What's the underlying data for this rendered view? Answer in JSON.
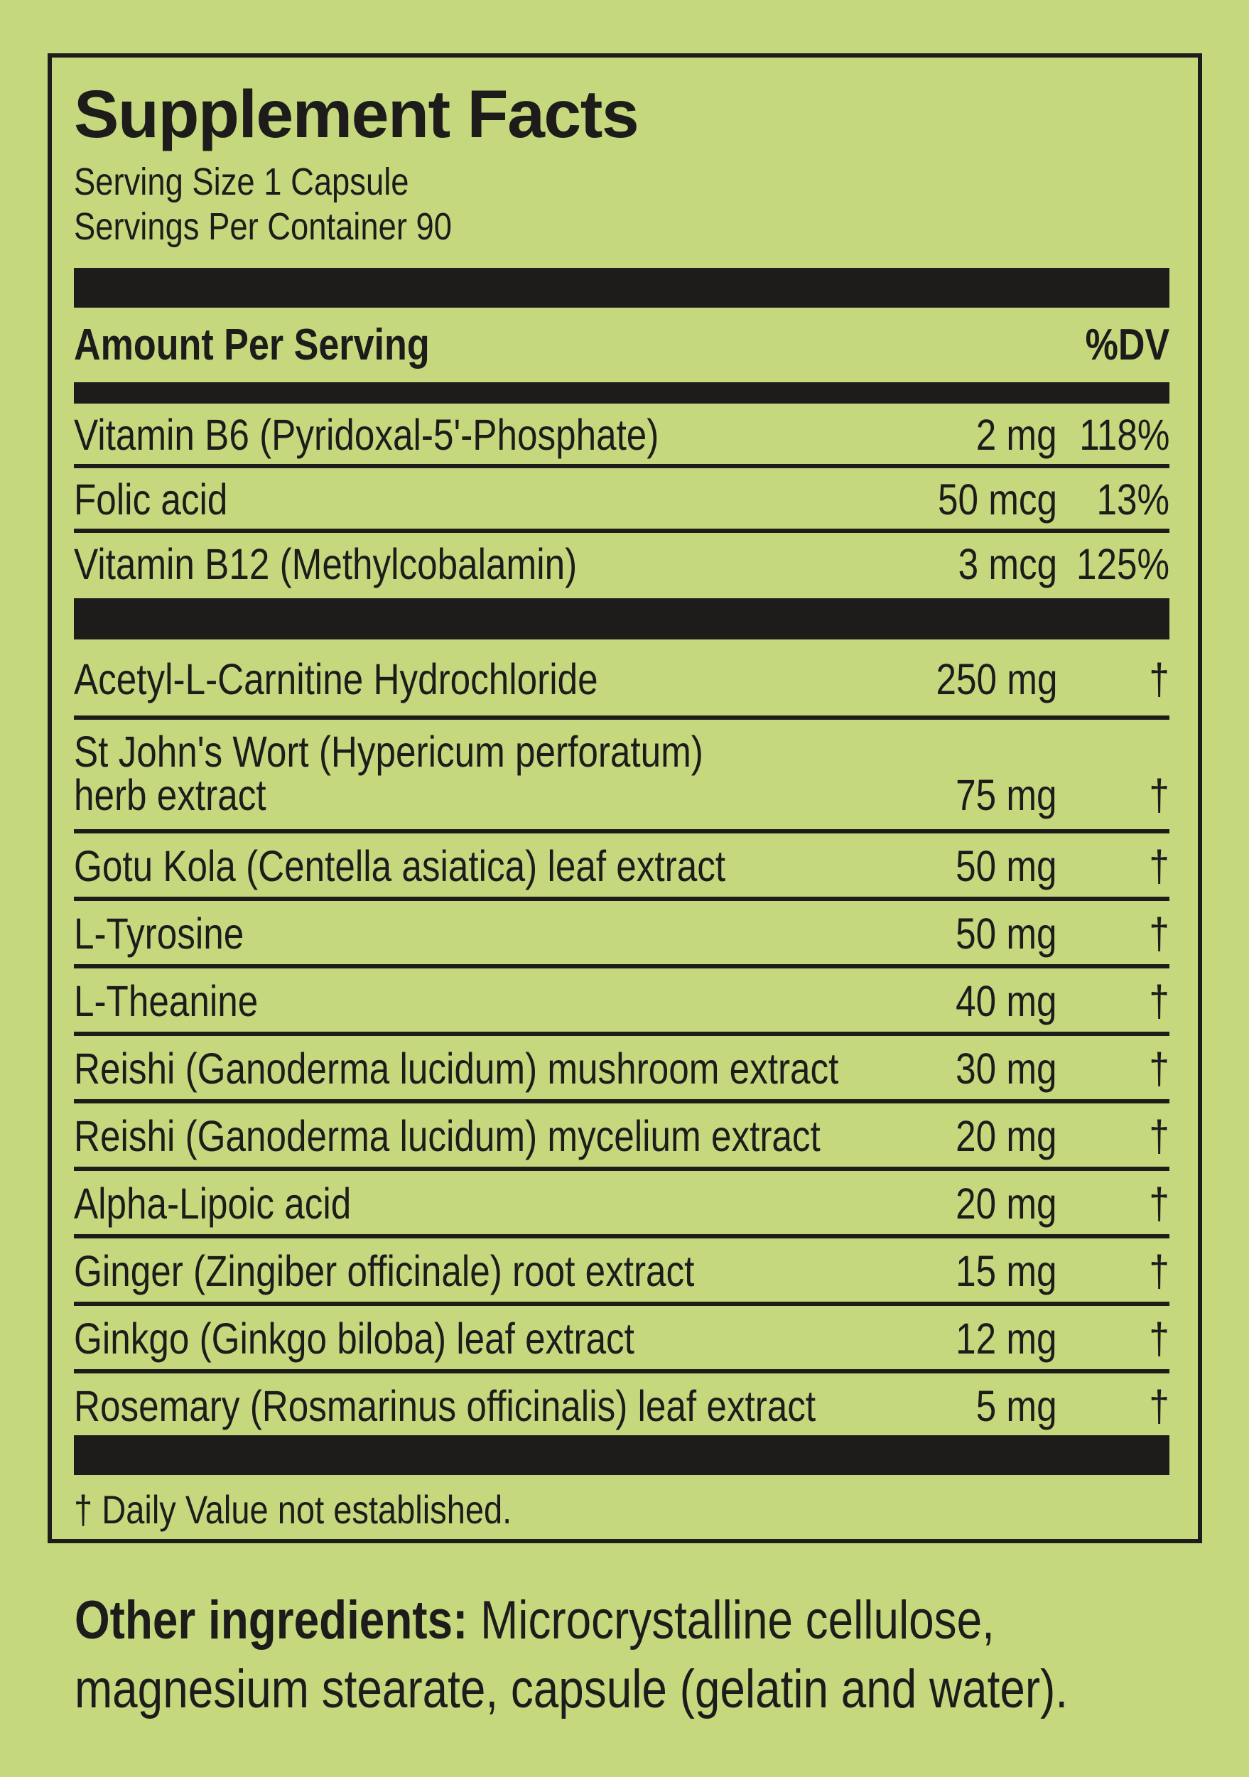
{
  "colors": {
    "background": "#c5d87e",
    "ink": "#1d1c1a"
  },
  "panel": {
    "title": "Supplement Facts",
    "serving_size": "Serving Size 1 Capsule",
    "servings_per_container": "Servings Per Container 90",
    "columns": {
      "amount_header": "Amount Per Serving",
      "dv_header": "%DV"
    },
    "vitamins": [
      {
        "name": "Vitamin B6 (Pyridoxal-5'-Phosphate)",
        "amount": "2 mg",
        "dv": "118%"
      },
      {
        "name": "Folic acid",
        "amount": "50 mcg",
        "dv": "13%"
      },
      {
        "name": "Vitamin B12 (Methylcobalamin)",
        "amount": "3 mcg",
        "dv": "125%"
      }
    ],
    "herbal_rows": [
      {
        "name": "Acetyl-L-Carnitine Hydrochloride",
        "amount": "250 mg",
        "dv": "†"
      },
      {
        "name_line1": "St John's Wort (Hypericum perforatum)",
        "name_line2": "herb extract",
        "amount": "75 mg",
        "dv": "†"
      },
      {
        "name": "Gotu Kola (Centella asiatica) leaf extract",
        "amount": "50 mg",
        "dv": "†"
      },
      {
        "name": "L-Tyrosine",
        "amount": "50 mg",
        "dv": "†"
      },
      {
        "name": "L-Theanine",
        "amount": "40 mg",
        "dv": "†"
      },
      {
        "name": "Reishi (Ganoderma lucidum) mushroom extract",
        "amount": "30 mg",
        "dv": "†"
      },
      {
        "name": "Reishi (Ganoderma lucidum) mycelium extract",
        "amount": "20 mg",
        "dv": "†"
      },
      {
        "name": "Alpha-Lipoic acid",
        "amount": "20 mg",
        "dv": "†"
      },
      {
        "name": "Ginger (Zingiber officinale) root extract",
        "amount": "15 mg",
        "dv": "†"
      },
      {
        "name": "Ginkgo (Ginkgo biloba) leaf extract",
        "amount": "12 mg",
        "dv": "†"
      },
      {
        "name": "Rosemary (Rosmarinus officinalis) leaf extract",
        "amount": "5 mg",
        "dv": "†"
      }
    ],
    "footnote": "† Daily Value not established."
  },
  "other_ingredients": {
    "label": "Other ingredients:",
    "text": "Microcrystalline cellulose, magnesium stearate, capsule (gelatin and water)."
  }
}
